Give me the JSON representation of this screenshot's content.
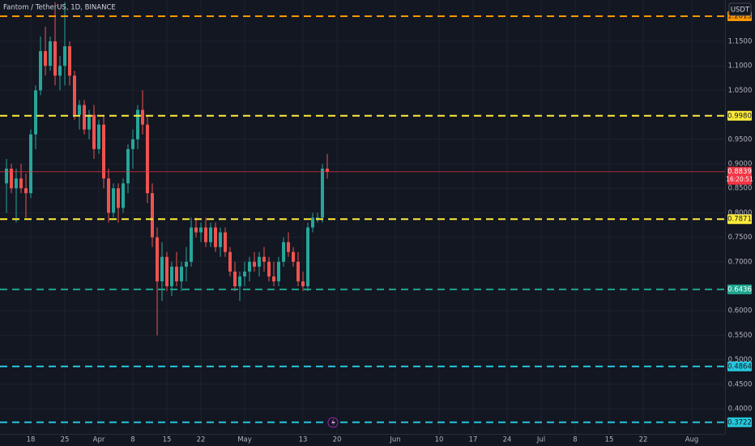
{
  "header": {
    "symbol": "Fantom / TetherUS, 1D, BINANCE",
    "currency": "USDT"
  },
  "chart_data": {
    "type": "candlestick",
    "categories": [
      null,
      null,
      null,
      null,
      null,
      "18",
      null,
      null,
      null,
      null,
      null,
      null,
      "25",
      null,
      null,
      null,
      null,
      null,
      null,
      "Apr",
      null,
      null,
      null,
      null,
      null,
      null,
      "8",
      null,
      null,
      null,
      null,
      null,
      null,
      "15",
      null,
      null,
      null,
      null,
      null,
      null,
      "22",
      null,
      null,
      null,
      null,
      null,
      null,
      null,
      null,
      "May",
      null,
      null,
      null,
      null,
      null,
      null,
      null,
      null,
      null,
      null,
      null,
      "13",
      null,
      null,
      null,
      null,
      null,
      null,
      "20",
      null,
      null,
      null,
      null,
      null,
      null,
      null,
      null,
      null,
      null,
      null,
      "Jun",
      null,
      null,
      null,
      null,
      null,
      null,
      null,
      null,
      "10",
      null,
      null,
      null,
      null,
      null,
      null,
      "17",
      null,
      null,
      null,
      null,
      null,
      null,
      "24",
      null,
      null,
      null,
      null,
      null,
      null,
      "Jul",
      null,
      null,
      null,
      null,
      null,
      null,
      "8",
      null,
      null,
      null,
      null,
      null,
      null,
      "15",
      null,
      null,
      null,
      null,
      null,
      null,
      "22",
      null,
      null,
      null,
      null,
      null,
      null,
      null,
      null,
      null,
      "Aug"
    ],
    "open": [
      0.86,
      0.89,
      0.85,
      0.87,
      0.85,
      0.84,
      0.96,
      1.05,
      1.13,
      1.1,
      1.15,
      1.08,
      1.1,
      1.14,
      1.08,
      1.0,
      1.02,
      0.97,
      1.0,
      0.93,
      0.98,
      0.87,
      0.8,
      0.85,
      0.81,
      0.86,
      0.93,
      0.95,
      1.01,
      0.98,
      0.84,
      0.75,
      0.66,
      0.71,
      0.65,
      0.69,
      0.66,
      0.69,
      0.7,
      0.77,
      0.76,
      0.77,
      0.74,
      0.77,
      0.73,
      0.76,
      0.72,
      0.68,
      0.65,
      0.67,
      0.68,
      0.7,
      0.69,
      0.71,
      0.7,
      0.67,
      0.66,
      0.7,
      0.74,
      0.72,
      0.7,
      0.66,
      0.65,
      0.77,
      0.79,
      0.79,
      0.89,
      null,
      null,
      null,
      null,
      null,
      null,
      null,
      null,
      null,
      null,
      null,
      null,
      null,
      null,
      null,
      null,
      null,
      null,
      null,
      null,
      null,
      null,
      null,
      null,
      null,
      null,
      null,
      null,
      null,
      null,
      null,
      null,
      null,
      null,
      null,
      null,
      null,
      null,
      null,
      null,
      null,
      null,
      null,
      null,
      null,
      null,
      null,
      null,
      null,
      null,
      null,
      null,
      null,
      null,
      null,
      null,
      null,
      null,
      null,
      null,
      null,
      null,
      null,
      null,
      null,
      null,
      null,
      null,
      null,
      null,
      null,
      null,
      null,
      null,
      null
    ],
    "high": [
      0.91,
      0.9,
      0.89,
      0.9,
      0.88,
      0.97,
      1.06,
      1.16,
      1.18,
      1.16,
      1.23,
      1.12,
      1.23,
      1.15,
      1.09,
      1.03,
      1.03,
      1.01,
      1.02,
      0.99,
      1.0,
      0.89,
      0.86,
      0.86,
      0.87,
      0.94,
      0.97,
      1.02,
      1.05,
      1.0,
      0.86,
      0.77,
      0.74,
      0.72,
      0.7,
      0.72,
      0.7,
      0.73,
      0.79,
      0.79,
      0.78,
      0.79,
      0.78,
      0.78,
      0.77,
      0.77,
      0.73,
      0.7,
      0.68,
      0.7,
      0.71,
      0.72,
      0.72,
      0.73,
      0.71,
      0.7,
      0.71,
      0.75,
      0.76,
      0.73,
      0.72,
      0.68,
      0.78,
      0.8,
      0.8,
      0.9,
      0.92,
      null,
      null,
      null,
      null,
      null,
      null,
      null,
      null,
      null,
      null,
      null,
      null,
      null,
      null,
      null,
      null,
      null,
      null,
      null,
      null,
      null,
      null,
      null,
      null,
      null,
      null,
      null,
      null,
      null,
      null,
      null,
      null,
      null,
      null,
      null,
      null,
      null,
      null,
      null,
      null,
      null,
      null,
      null,
      null,
      null,
      null,
      null,
      null,
      null,
      null,
      null,
      null,
      null,
      null,
      null,
      null,
      null,
      null,
      null,
      null,
      null,
      null,
      null,
      null,
      null,
      null,
      null,
      null,
      null,
      null,
      null,
      null,
      null,
      null,
      null
    ],
    "low": [
      0.8,
      0.84,
      0.78,
      0.84,
      0.79,
      0.83,
      0.93,
      1.04,
      1.08,
      1.09,
      1.06,
      1.05,
      1.06,
      1.06,
      0.99,
      0.97,
      0.96,
      0.95,
      0.91,
      0.92,
      0.85,
      0.78,
      0.79,
      0.78,
      0.8,
      0.84,
      0.89,
      0.93,
      0.96,
      0.82,
      0.73,
      0.55,
      0.62,
      0.64,
      0.63,
      0.65,
      0.64,
      0.66,
      0.69,
      0.75,
      0.74,
      0.73,
      0.73,
      0.72,
      0.71,
      0.71,
      0.67,
      0.64,
      0.62,
      0.65,
      0.66,
      0.68,
      0.67,
      0.68,
      0.66,
      0.65,
      0.65,
      0.69,
      0.71,
      0.69,
      0.65,
      0.64,
      0.64,
      0.76,
      0.78,
      0.78,
      0.87,
      null,
      null,
      null,
      null,
      null,
      null,
      null,
      null,
      null,
      null,
      null,
      null,
      null,
      null,
      null,
      null,
      null,
      null,
      null,
      null,
      null,
      null,
      null,
      null,
      null,
      null,
      null,
      null,
      null,
      null,
      null,
      null,
      null,
      null,
      null,
      null,
      null,
      null,
      null,
      null,
      null,
      null,
      null,
      null,
      null,
      null,
      null,
      null,
      null,
      null,
      null,
      null,
      null,
      null,
      null,
      null,
      null,
      null,
      null,
      null,
      null,
      null,
      null,
      null,
      null,
      null,
      null,
      null,
      null,
      null,
      null,
      null,
      null,
      null,
      null
    ],
    "close": [
      0.89,
      0.85,
      0.87,
      0.85,
      0.84,
      0.96,
      1.05,
      1.13,
      1.1,
      1.15,
      1.08,
      1.1,
      1.14,
      1.08,
      1.0,
      1.02,
      0.97,
      1.0,
      0.93,
      0.98,
      0.87,
      0.8,
      0.85,
      0.81,
      0.86,
      0.93,
      0.95,
      1.01,
      0.98,
      0.84,
      0.75,
      0.66,
      0.71,
      0.65,
      0.69,
      0.66,
      0.69,
      0.7,
      0.77,
      0.76,
      0.77,
      0.74,
      0.77,
      0.73,
      0.76,
      0.72,
      0.68,
      0.65,
      0.67,
      0.68,
      0.7,
      0.69,
      0.71,
      0.7,
      0.67,
      0.66,
      0.7,
      0.74,
      0.72,
      0.7,
      0.66,
      0.65,
      0.77,
      0.79,
      0.79,
      0.89,
      0.8839,
      null,
      null,
      null,
      null,
      null,
      null,
      null,
      null,
      null,
      null,
      null,
      null,
      null,
      null,
      null,
      null,
      null,
      null,
      null,
      null,
      null,
      null,
      null,
      null,
      null,
      null,
      null,
      null,
      null,
      null,
      null,
      null,
      null,
      null,
      null,
      null,
      null,
      null,
      null,
      null,
      null,
      null,
      null,
      null,
      null,
      null,
      null,
      null,
      null,
      null,
      null,
      null,
      null,
      null,
      null,
      null,
      null,
      null,
      null,
      null,
      null,
      null,
      null,
      null,
      null,
      null,
      null,
      null,
      null,
      null,
      null,
      null,
      null,
      null,
      null
    ],
    "up_color": "#26a69a",
    "down_color": "#ef5350",
    "ylim": [
      0.3487,
      1.2344
    ],
    "yticks": [
      {
        "value": 1.15,
        "label": "1.1500"
      },
      {
        "value": 1.1,
        "label": "1.1000"
      },
      {
        "value": 1.05,
        "label": "1.0500"
      },
      {
        "value": 0.95,
        "label": "0.9500"
      },
      {
        "value": 0.9,
        "label": "0.9000"
      },
      {
        "value": 0.85,
        "label": "0.8500"
      },
      {
        "value": 0.8,
        "label": "0.8000"
      },
      {
        "value": 0.75,
        "label": "0.7500"
      },
      {
        "value": 0.7,
        "label": "0.7000"
      },
      {
        "value": 0.6,
        "label": "0.6000"
      },
      {
        "value": 0.55,
        "label": "0.5500"
      },
      {
        "value": 0.5,
        "label": "0.5000"
      },
      {
        "value": 0.45,
        "label": "0.4500"
      },
      {
        "value": 0.4,
        "label": "0.4000"
      }
    ],
    "grid": true,
    "levels": [
      {
        "value": 1.2013,
        "color": "#ff9800"
      },
      {
        "value": 0.998,
        "label": "0.9980",
        "color": "#ffeb3b"
      },
      {
        "value": 0.7871,
        "color": "#ffeb3b"
      },
      {
        "value": 0.6436,
        "color": "#1fa58f"
      },
      {
        "value": 0.4864,
        "color": "#26c6da"
      },
      {
        "value": 0.3722,
        "color": "#26c6da"
      }
    ],
    "last_price": {
      "value": 0.8839,
      "countdown": "16:20:51",
      "color": "#f23645"
    }
  }
}
